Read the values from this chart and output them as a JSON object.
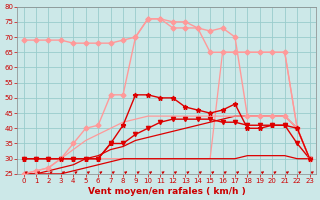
{
  "xlabel": "Vent moyen/en rafales ( km/h )",
  "background_color": "#cce8e8",
  "grid_color": "#99cccc",
  "xlim": [
    -0.5,
    23.5
  ],
  "ylim": [
    25,
    80
  ],
  "yticks": [
    25,
    30,
    35,
    40,
    45,
    50,
    55,
    60,
    65,
    70,
    75,
    80
  ],
  "xticks": [
    0,
    1,
    2,
    3,
    4,
    5,
    6,
    7,
    8,
    9,
    10,
    11,
    12,
    13,
    14,
    15,
    16,
    17,
    18,
    19,
    20,
    21,
    22,
    23
  ],
  "series": [
    {
      "x": [
        0,
        1,
        2,
        3,
        4,
        5,
        6,
        7,
        8,
        9,
        10,
        11,
        12,
        13,
        14,
        15,
        16,
        17,
        18,
        19,
        20,
        21,
        22,
        23
      ],
      "y": [
        30,
        30,
        30,
        30,
        30,
        30,
        30,
        35,
        41,
        51,
        51,
        50,
        50,
        47,
        46,
        45,
        46,
        48,
        40,
        40,
        41,
        41,
        40,
        30
      ],
      "color": "#dd0000",
      "lw": 1.0,
      "marker": "*",
      "ms": 3.5,
      "zorder": 5
    },
    {
      "x": [
        0,
        1,
        2,
        3,
        4,
        5,
        6,
        7,
        8,
        9,
        10,
        11,
        12,
        13,
        14,
        15,
        16,
        17,
        18,
        19,
        20,
        21,
        22,
        23
      ],
      "y": [
        30,
        30,
        30,
        30,
        30,
        30,
        30,
        35,
        35,
        38,
        40,
        42,
        43,
        43,
        43,
        43,
        42,
        42,
        41,
        41,
        41,
        41,
        35,
        30
      ],
      "color": "#dd0000",
      "lw": 1.0,
      "marker": "v",
      "ms": 3.0,
      "zorder": 4
    },
    {
      "x": [
        0,
        1,
        2,
        3,
        4,
        5,
        6,
        7,
        8,
        9,
        10,
        11,
        12,
        13,
        14,
        15,
        16,
        17,
        18,
        19,
        20,
        21,
        22,
        23
      ],
      "y": [
        25,
        25,
        26,
        27,
        28,
        30,
        31,
        33,
        34,
        36,
        37,
        38,
        39,
        40,
        41,
        42,
        43,
        44,
        44,
        44,
        44,
        44,
        40,
        30
      ],
      "color": "#dd0000",
      "lw": 0.9,
      "marker": null,
      "ms": 0,
      "zorder": 3
    },
    {
      "x": [
        0,
        1,
        2,
        3,
        4,
        5,
        6,
        7,
        8,
        9,
        10,
        11,
        12,
        13,
        14,
        15,
        16,
        17,
        18,
        19,
        20,
        21,
        22,
        23
      ],
      "y": [
        25,
        25,
        25,
        25,
        26,
        27,
        28,
        29,
        30,
        30,
        30,
        30,
        30,
        30,
        30,
        30,
        30,
        30,
        31,
        31,
        31,
        31,
        30,
        30
      ],
      "color": "#dd0000",
      "lw": 0.9,
      "marker": null,
      "ms": 0,
      "zorder": 3
    },
    {
      "x": [
        0,
        1,
        2,
        3,
        4,
        5,
        6,
        7,
        8,
        9,
        10,
        11,
        12,
        13,
        14,
        15,
        16,
        17,
        18,
        19,
        20,
        21,
        22,
        23
      ],
      "y": [
        69,
        69,
        69,
        69,
        68,
        68,
        68,
        68,
        69,
        70,
        76,
        76,
        75,
        75,
        73,
        65,
        65,
        65,
        65,
        65,
        65,
        65,
        40,
        30
      ],
      "color": "#ff9999",
      "lw": 1.0,
      "marker": "D",
      "ms": 2.5,
      "zorder": 4
    },
    {
      "x": [
        0,
        1,
        2,
        3,
        4,
        5,
        6,
        7,
        8,
        9,
        10,
        11,
        12,
        13,
        14,
        15,
        16,
        17,
        18,
        19,
        20,
        21,
        22,
        23
      ],
      "y": [
        25,
        26,
        27,
        30,
        35,
        40,
        41,
        51,
        51,
        70,
        76,
        76,
        73,
        73,
        73,
        72,
        73,
        70,
        44,
        44,
        44,
        44,
        40,
        30
      ],
      "color": "#ff9999",
      "lw": 1.0,
      "marker": "D",
      "ms": 2.5,
      "zorder": 4
    },
    {
      "x": [
        0,
        1,
        2,
        3,
        4,
        5,
        6,
        7,
        8,
        9,
        10,
        11,
        12,
        13,
        14,
        15,
        16,
        17,
        18,
        19,
        20,
        21,
        22,
        23
      ],
      "y": [
        25,
        26,
        27,
        30,
        33,
        36,
        38,
        40,
        42,
        43,
        44,
        44,
        44,
        44,
        44,
        44,
        44,
        44,
        44,
        44,
        44,
        44,
        40,
        30
      ],
      "color": "#ff9999",
      "lw": 0.9,
      "marker": null,
      "ms": 0,
      "zorder": 3
    },
    {
      "x": [
        0,
        1,
        2,
        3,
        4,
        5,
        6,
        7,
        8,
        9,
        10,
        11,
        12,
        13,
        14,
        15,
        16,
        17,
        18,
        19,
        20,
        21,
        22,
        23
      ],
      "y": [
        30,
        30,
        30,
        30,
        30,
        30,
        30,
        30,
        30,
        30,
        30,
        30,
        30,
        30,
        30,
        30,
        65,
        65,
        65,
        65,
        65,
        65,
        40,
        30
      ],
      "color": "#ff9999",
      "lw": 0.9,
      "marker": null,
      "ms": 0,
      "zorder": 2
    }
  ],
  "arrow_color": "#cc0000",
  "tick_label_color": "#cc0000",
  "xlabel_color": "#cc0000",
  "tick_fontsize": 5.0,
  "xlabel_fontsize": 6.5
}
